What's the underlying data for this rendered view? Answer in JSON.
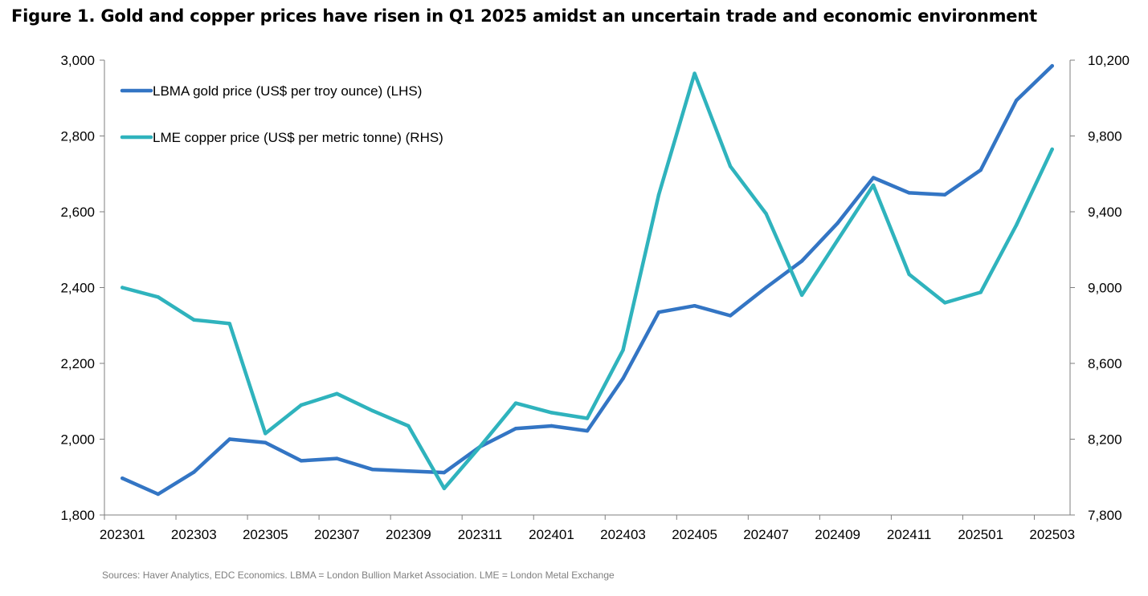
{
  "chart_data": {
    "type": "line",
    "title": "Figure 1. Gold and copper prices have risen in Q1 2025 amidst an uncertain trade and economic environment",
    "x": [
      "202301",
      "202302",
      "202303",
      "202304",
      "202305",
      "202306",
      "202307",
      "202308",
      "202309",
      "202310",
      "202311",
      "202312",
      "202401",
      "202402",
      "202403",
      "202404",
      "202405",
      "202406",
      "202407",
      "202408",
      "202409",
      "202410",
      "202411",
      "202412",
      "202501",
      "202502",
      "202503"
    ],
    "x_tick_labels": [
      "202301",
      "202303",
      "202305",
      "202307",
      "202309",
      "202311",
      "202401",
      "202403",
      "202405",
      "202407",
      "202409",
      "202411",
      "202501",
      "202503"
    ],
    "series": [
      {
        "name": "LBMA gold price (US$ per troy ounce) (LHS)",
        "axis": "left",
        "color": "#3375C4",
        "values": [
          1897,
          1855,
          1913,
          2000,
          1991,
          1943,
          1949,
          1920,
          1916,
          1912,
          1980,
          2028,
          2035,
          2022,
          2160,
          2335,
          2352,
          2326,
          2400,
          2470,
          2570,
          2690,
          2650,
          2645,
          2710,
          2894,
          2985
        ]
      },
      {
        "name": "LME copper price (US$ per metric tonne) (RHS)",
        "axis": "right",
        "color": "#2FB3BD",
        "values": [
          9000,
          8950,
          8830,
          8810,
          8230,
          8380,
          8440,
          8350,
          8270,
          7940,
          8160,
          8390,
          8340,
          8310,
          8670,
          9490,
          10130,
          9640,
          9390,
          8960,
          9250,
          9540,
          9070,
          8920,
          8975,
          9330,
          9730
        ]
      }
    ],
    "y_left": {
      "ylim": [
        1800,
        3000
      ],
      "ticks": [
        1800,
        2000,
        2200,
        2400,
        2600,
        2800,
        3000
      ],
      "tick_labels": [
        "1,800",
        "2,000",
        "2,200",
        "2,400",
        "2,600",
        "2,800",
        "3,000"
      ]
    },
    "y_right": {
      "ylim": [
        7800,
        10200
      ],
      "ticks": [
        7800,
        8200,
        8600,
        9000,
        9400,
        9800,
        10200
      ],
      "tick_labels": [
        "7,800",
        "8,200",
        "8,600",
        "9,000",
        "9,400",
        "9,800",
        "10,200"
      ]
    },
    "grid": false,
    "legend_position": "top-left",
    "source": "Sources: Haver Analytics, EDC Economics. LBMA = London Bullion Market Association. LME = London Metal Exchange"
  }
}
